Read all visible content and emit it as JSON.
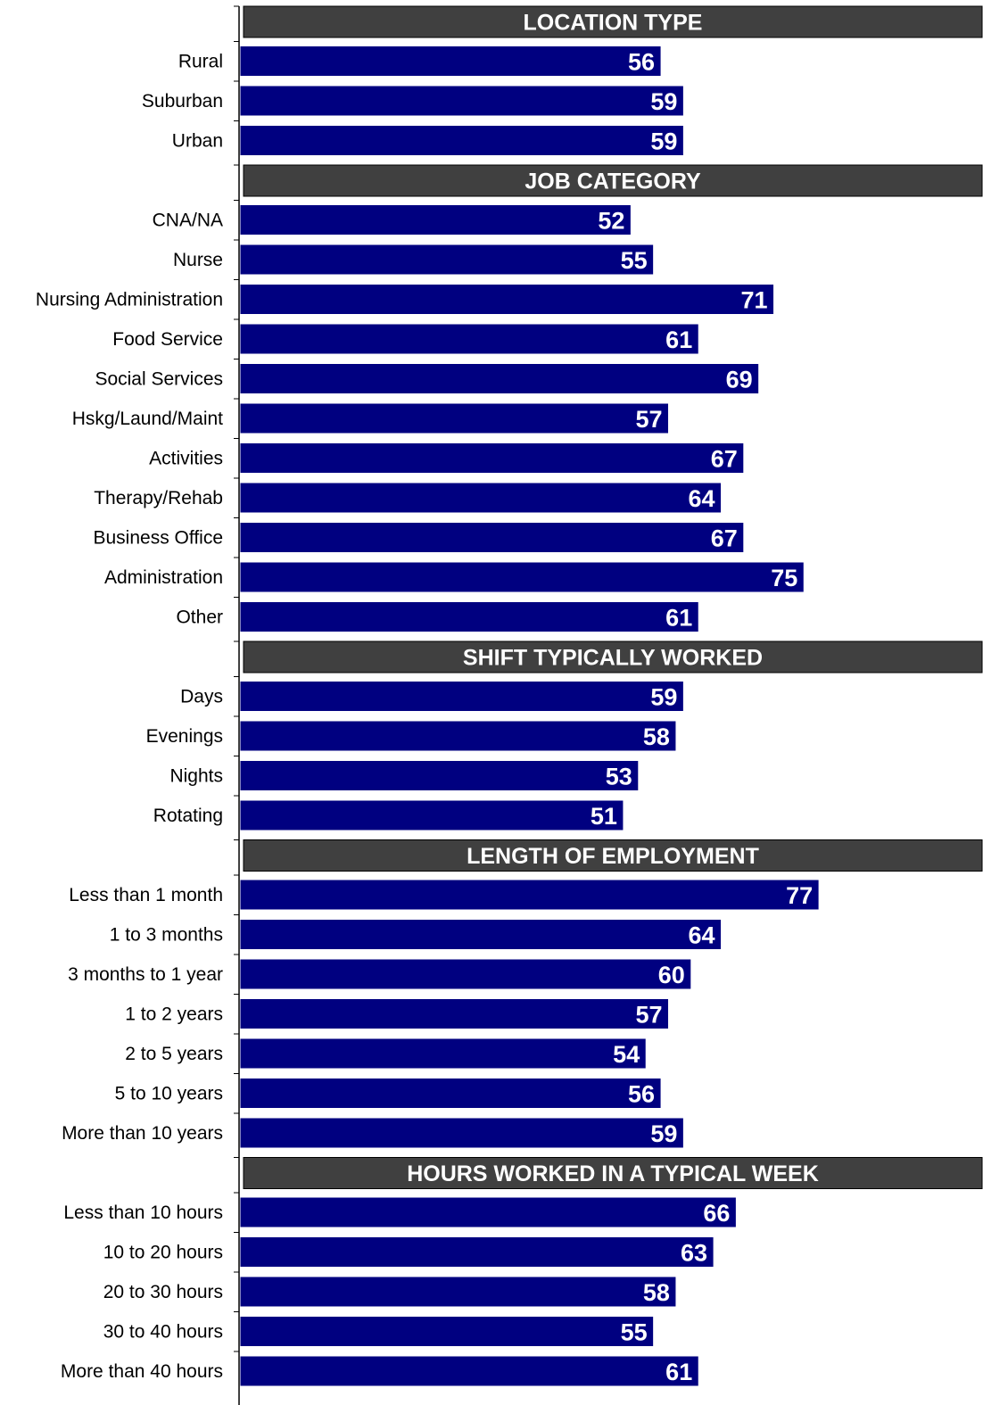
{
  "chart_data": {
    "type": "bar",
    "orientation": "horizontal",
    "colors": {
      "bar": "#000080",
      "section_header": "#404040",
      "axis": "#000000"
    },
    "sections": [
      {
        "title": "LOCATION TYPE",
        "items": [
          {
            "label": "Rural",
            "value": 56
          },
          {
            "label": "Suburban",
            "value": 59
          },
          {
            "label": "Urban",
            "value": 59
          }
        ]
      },
      {
        "title": "JOB CATEGORY",
        "items": [
          {
            "label": "CNA/NA",
            "value": 52
          },
          {
            "label": "Nurse",
            "value": 55
          },
          {
            "label": "Nursing Administration",
            "value": 71
          },
          {
            "label": "Food Service",
            "value": 61
          },
          {
            "label": "Social Services",
            "value": 69
          },
          {
            "label": "Hskg/Laund/Maint",
            "value": 57
          },
          {
            "label": "Activities",
            "value": 67
          },
          {
            "label": "Therapy/Rehab",
            "value": 64
          },
          {
            "label": "Business Office",
            "value": 67
          },
          {
            "label": "Administration",
            "value": 75
          },
          {
            "label": "Other",
            "value": 61
          }
        ]
      },
      {
        "title": "SHIFT TYPICALLY WORKED",
        "items": [
          {
            "label": "Days",
            "value": 59
          },
          {
            "label": "Evenings",
            "value": 58
          },
          {
            "label": "Nights",
            "value": 53
          },
          {
            "label": "Rotating",
            "value": 51
          }
        ]
      },
      {
        "title": "LENGTH OF EMPLOYMENT",
        "items": [
          {
            "label": "Less than 1 month",
            "value": 77
          },
          {
            "label": "1 to 3 months",
            "value": 64
          },
          {
            "label": "3 months to 1 year",
            "value": 60
          },
          {
            "label": "1 to 2 years",
            "value": 57
          },
          {
            "label": "2 to 5 years",
            "value": 54
          },
          {
            "label": "5 to 10 years",
            "value": 56
          },
          {
            "label": "More than 10 years",
            "value": 59
          }
        ]
      },
      {
        "title": "HOURS WORKED IN A TYPICAL WEEK",
        "items": [
          {
            "label": "Less than 10 hours",
            "value": 66
          },
          {
            "label": "10 to 20 hours",
            "value": 63
          },
          {
            "label": "20 to 30 hours",
            "value": 58
          },
          {
            "label": "30 to 40 hours",
            "value": 55
          },
          {
            "label": "More than 40 hours",
            "value": 61
          }
        ]
      }
    ],
    "xlim": [
      0,
      100
    ],
    "grid": false,
    "legend": "none"
  }
}
